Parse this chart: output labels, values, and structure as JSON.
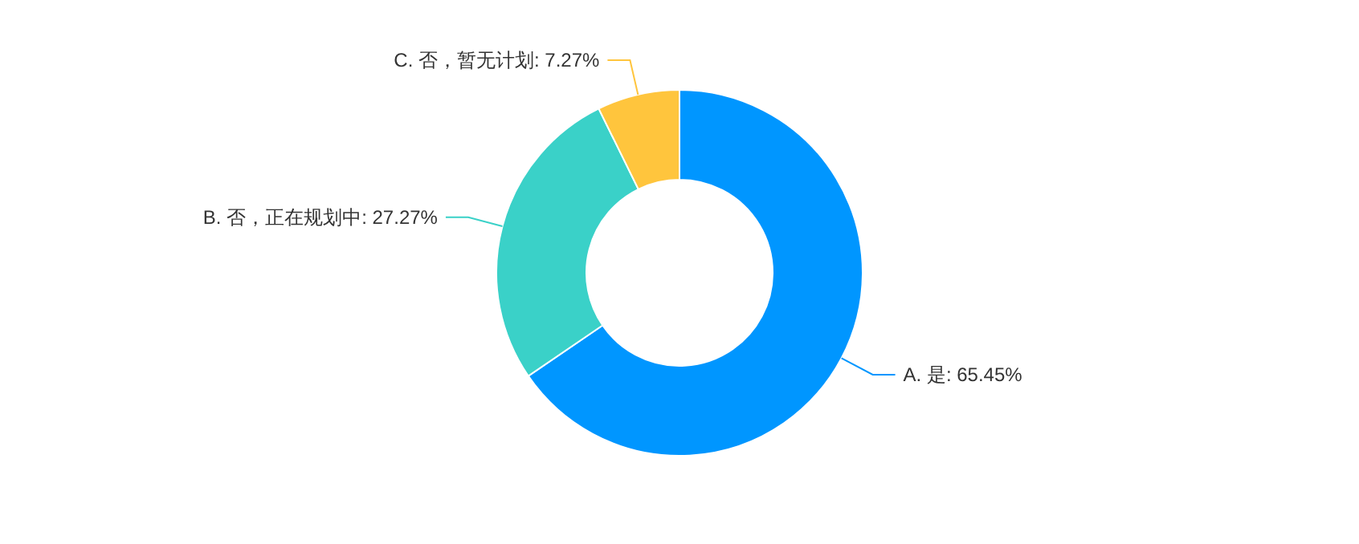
{
  "chart_data": {
    "type": "donut",
    "categories": [
      "A. 是",
      "B. 否，正在规划中",
      "C. 否，暂无计划"
    ],
    "values": [
      65.45,
      27.27,
      7.27
    ],
    "value_labels": [
      "65.45%",
      "27.27%",
      "7.27%"
    ],
    "colors": [
      "#0096ff",
      "#3ad1c8",
      "#ffc53d"
    ]
  }
}
